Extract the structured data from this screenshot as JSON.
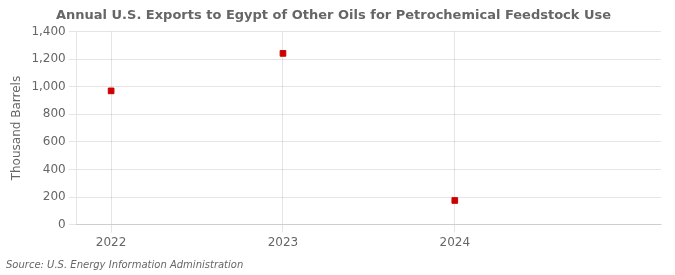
{
  "chart_data": {
    "type": "scatter",
    "title": "Annual U.S. Exports to Egypt of Other Oils for Petrochemical Feedstock Use",
    "ylabel": "Thousand Barrels",
    "source": "Source: U.S. Energy Information Administration",
    "x": [
      2022,
      2023,
      2024
    ],
    "values": [
      970,
      1242,
      175
    ],
    "color": "#cc0000",
    "marker": "square",
    "grid": true,
    "xlim": [
      2021.8,
      2025.2
    ],
    "xticks": [
      2022,
      2023,
      2024
    ],
    "ylim": [
      0,
      1400
    ],
    "yticks": [
      0,
      200,
      400,
      600,
      800,
      {
        "value": 1000,
        "label": "1,000"
      },
      {
        "value": 1200,
        "label": "1,200"
      },
      {
        "value": 1400,
        "label": "1,400"
      }
    ]
  }
}
